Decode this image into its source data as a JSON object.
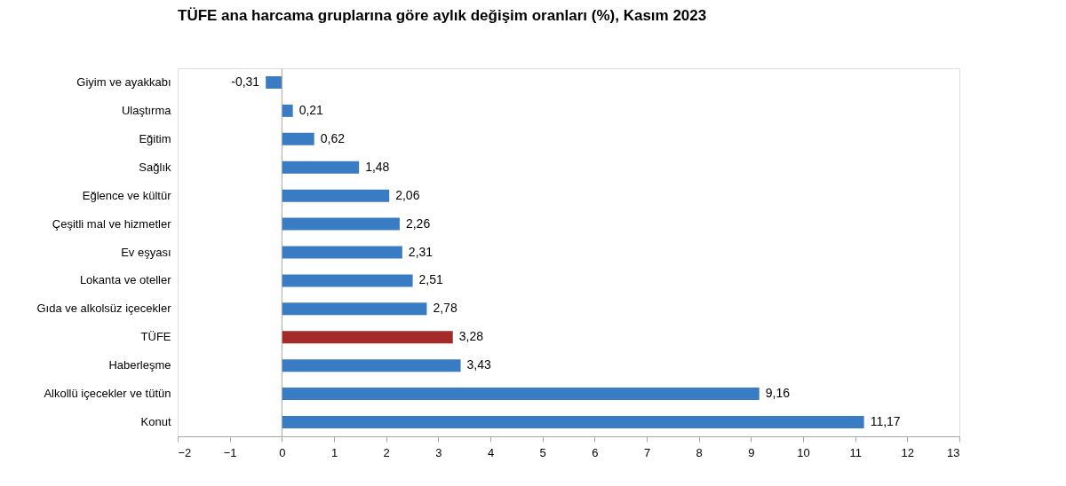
{
  "chart_data": {
    "type": "bar",
    "orientation": "horizontal",
    "title": "TÜFE ana harcama gruplarına göre aylık değişim oranları (%), Kasım 2023",
    "categories": [
      "Giyim ve ayakkabı",
      "Ulaştırma",
      "Eğitim",
      "Sağlık",
      "Eğlence ve kültür",
      "Çeşitli mal ve hizmetler",
      "Ev eşyası",
      "Lokanta ve oteller",
      "Gıda ve alkolsüz içecekler",
      "TÜFE",
      "Haberleşme",
      "Alkollü içecekler ve tütün",
      "Konut"
    ],
    "values": [
      -0.31,
      0.21,
      0.62,
      1.48,
      2.06,
      2.26,
      2.31,
      2.51,
      2.78,
      3.28,
      3.43,
      9.16,
      11.17
    ],
    "value_labels": [
      "-0,31",
      "0,21",
      "0,62",
      "1,48",
      "2,06",
      "2,26",
      "2,31",
      "2,51",
      "2,78",
      "3,28",
      "3,43",
      "9,16",
      "11,17"
    ],
    "colors": [
      "#3a7cc3",
      "#3a7cc3",
      "#3a7cc3",
      "#3a7cc3",
      "#3a7cc3",
      "#3a7cc3",
      "#3a7cc3",
      "#3a7cc3",
      "#3a7cc3",
      "#a52a2a",
      "#3a7cc3",
      "#3a7cc3",
      "#3a7cc3"
    ],
    "xlim": [
      -2,
      13
    ],
    "xticks": [
      -2,
      -1,
      0,
      1,
      2,
      3,
      4,
      5,
      6,
      7,
      8,
      9,
      10,
      11,
      12,
      13
    ],
    "ref_lines": [
      {
        "axis": "x",
        "value": 0,
        "color": "#a6a6a6"
      }
    ],
    "grid": false
  }
}
